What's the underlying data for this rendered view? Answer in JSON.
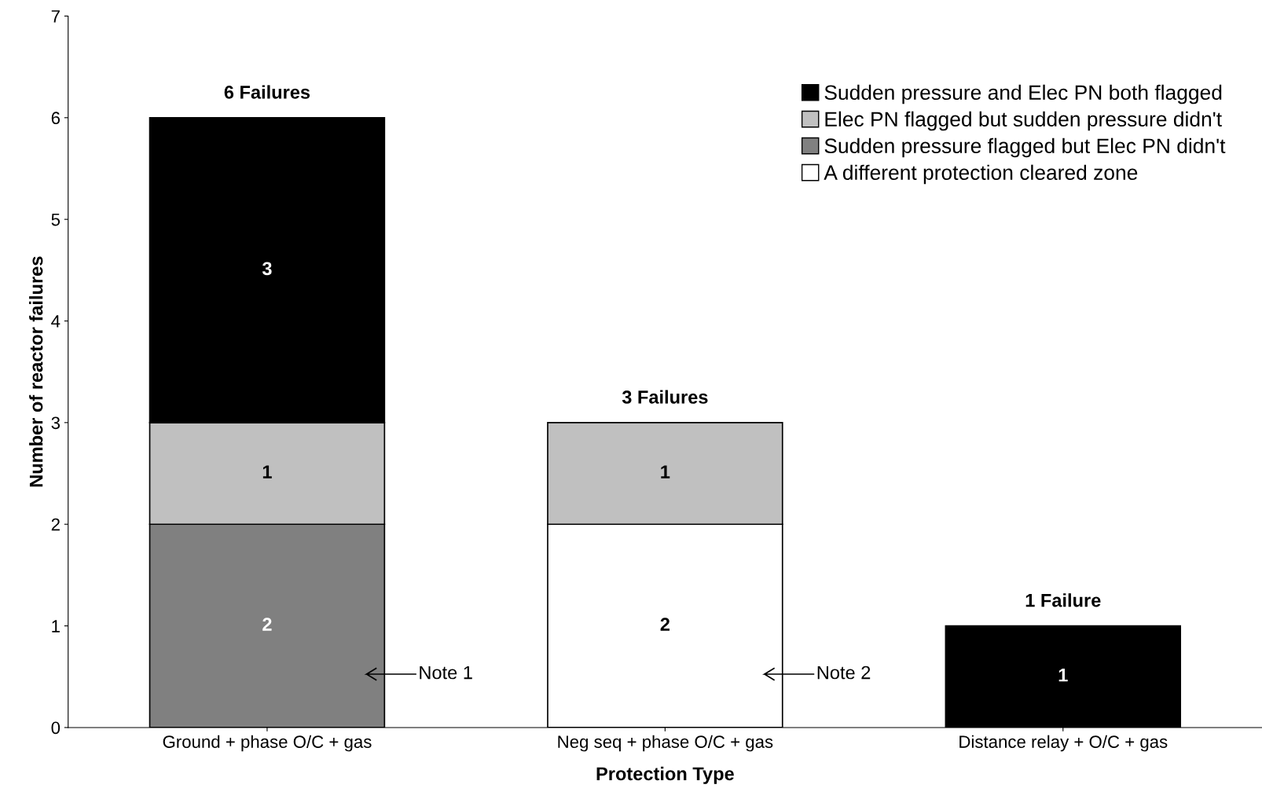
{
  "chart_data": {
    "type": "bar",
    "stacked": true,
    "xlabel": "Protection Type",
    "ylabel": "Number of reactor failures",
    "categories": [
      "Ground + phase O/C + gas",
      "Neg seq + phase O/C + gas",
      "Distance relay + O/C + gas"
    ],
    "series": [
      {
        "name": "A different protection cleared zone",
        "color": "#ffffff",
        "values": [
          null,
          2,
          null
        ]
      },
      {
        "name": "Sudden pressure flagged but Elec PN didn't",
        "color": "#808080",
        "values": [
          2,
          null,
          null
        ]
      },
      {
        "name": "Elec PN flagged but sudden pressure didn't",
        "color": "#c0c0c0",
        "values": [
          1,
          1,
          null
        ]
      },
      {
        "name": "Sudden pressure and Elec PN both flagged",
        "color": "#000000",
        "values": [
          3,
          null,
          1
        ]
      }
    ],
    "data_labels": true,
    "totals": [
      "6 Failures",
      "3 Failures",
      "1 Failure"
    ],
    "annotations": [
      "Note 1",
      "Note 2"
    ],
    "ylim": [
      0,
      7
    ],
    "yticks": [
      0,
      1,
      2,
      3,
      4,
      5,
      6,
      7
    ],
    "grid": false,
    "legend": "top right"
  }
}
